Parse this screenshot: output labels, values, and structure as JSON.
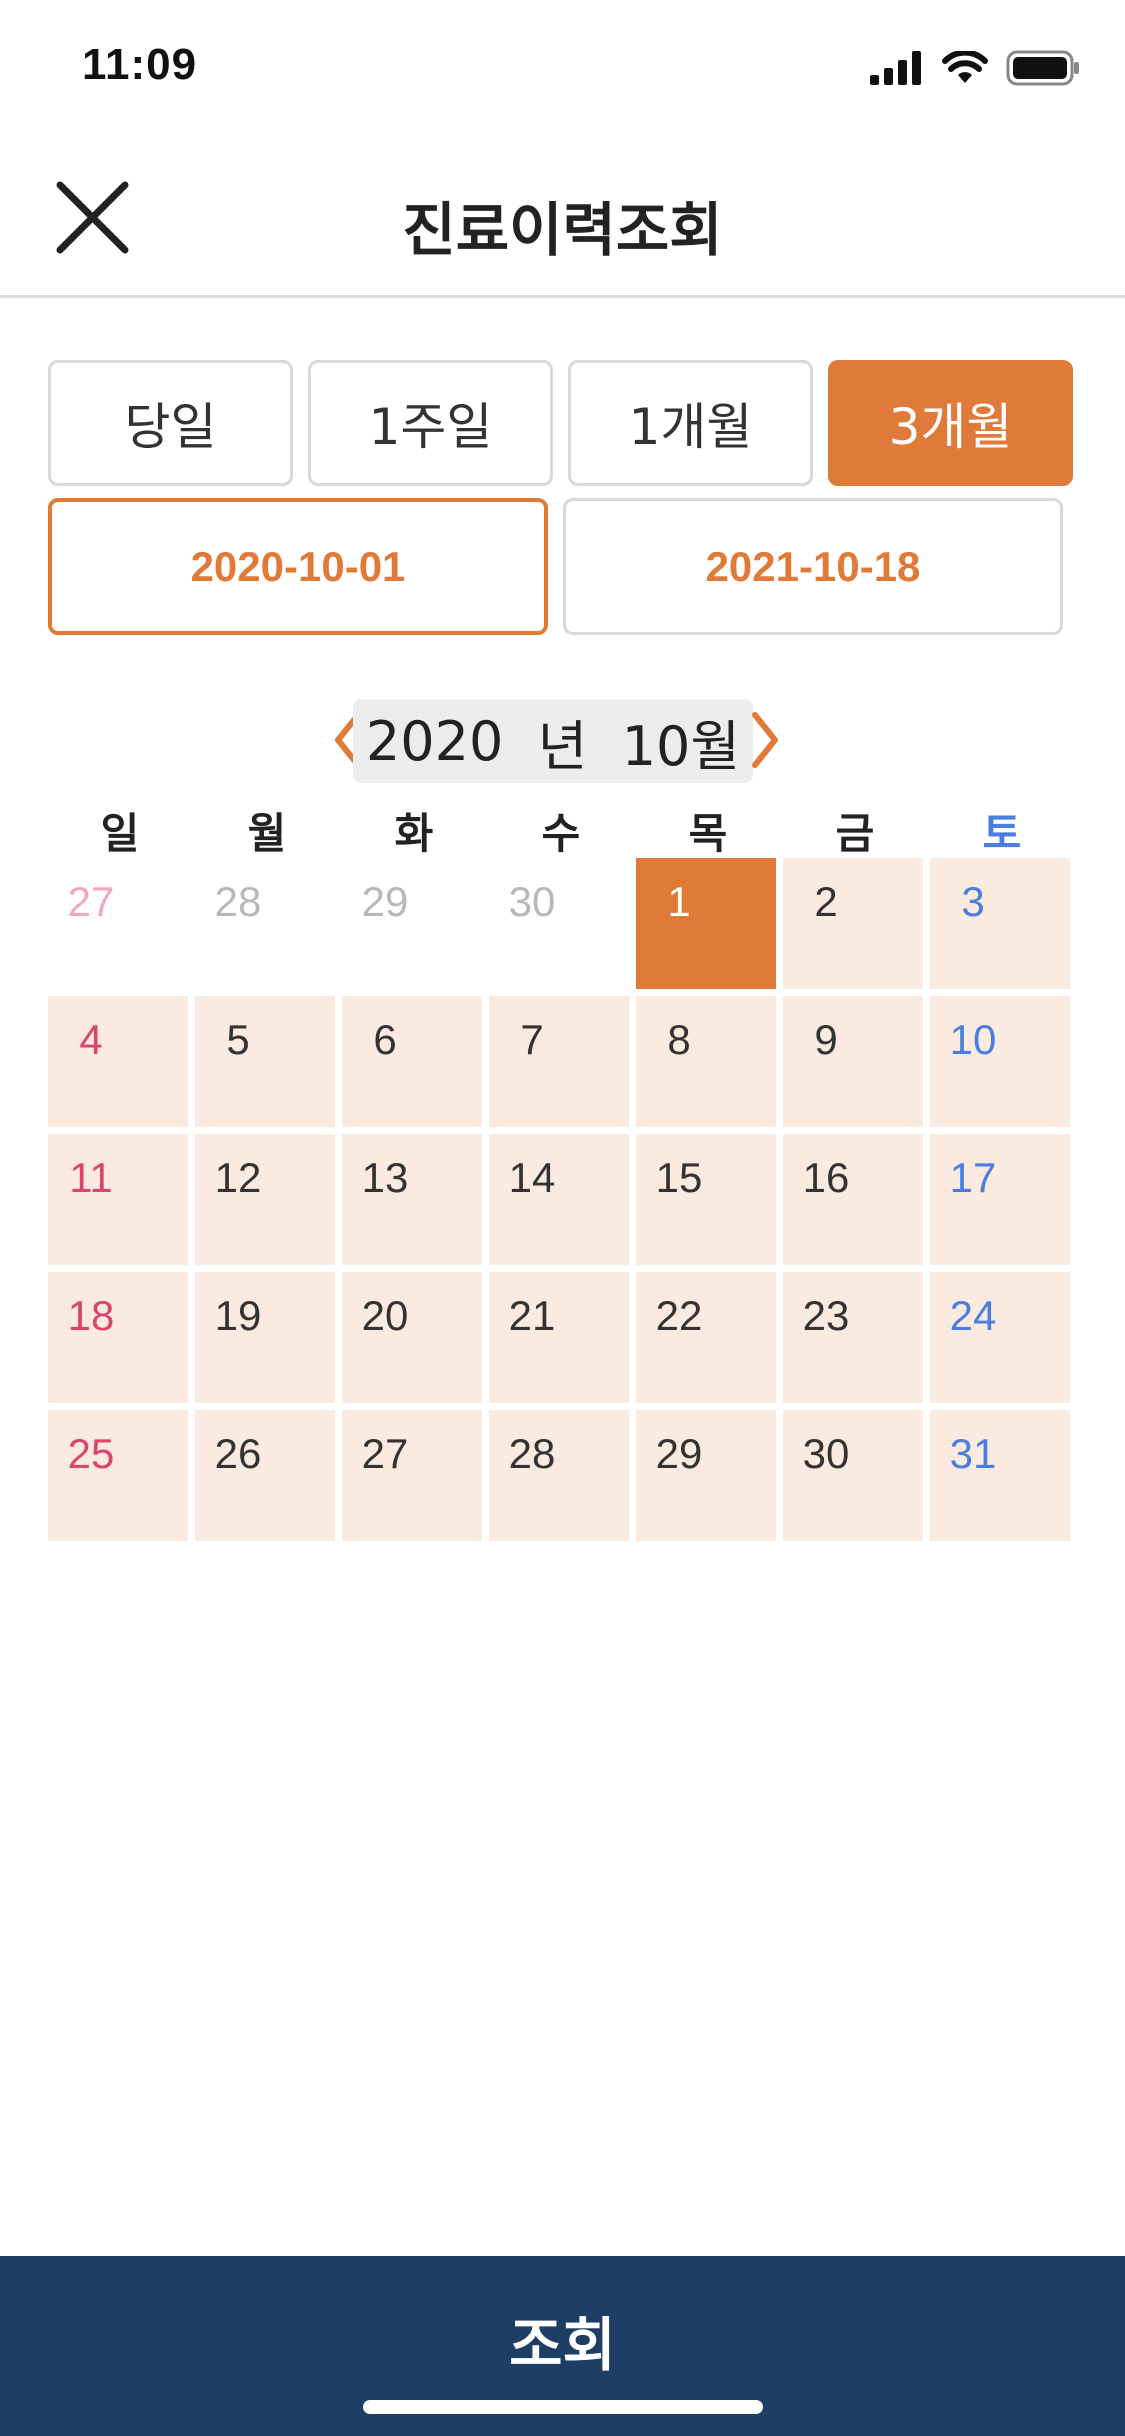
{
  "status_bar": {
    "time": "11:09"
  },
  "header": {
    "title": "진료이력조회"
  },
  "period_buttons": [
    {
      "label": "당일",
      "active": false
    },
    {
      "label": "1주일",
      "active": false
    },
    {
      "label": "1개월",
      "active": false
    },
    {
      "label": "3개월",
      "active": true
    }
  ],
  "date_range": {
    "start": "2020-10-01",
    "end": "2021-10-18"
  },
  "calendar": {
    "year": "2020",
    "year_suffix": "년",
    "month": "10월",
    "weekdays": [
      "일",
      "월",
      "화",
      "수",
      "목",
      "금",
      "토"
    ],
    "weeks": [
      [
        "27",
        "28",
        "29",
        "30",
        "1",
        "2",
        "3"
      ],
      [
        "4",
        "5",
        "6",
        "7",
        "8",
        "9",
        "10"
      ],
      [
        "11",
        "12",
        "13",
        "14",
        "15",
        "16",
        "17"
      ],
      [
        "18",
        "19",
        "20",
        "21",
        "22",
        "23",
        "24"
      ],
      [
        "25",
        "26",
        "27",
        "28",
        "29",
        "30",
        "31"
      ]
    ],
    "selected_day": "1",
    "colors": {
      "accent": "#e07a38",
      "range": "#fbeadf",
      "sunday": "#d9456e",
      "saturday": "#4a7fe0"
    }
  },
  "bottom_button": {
    "label": "조회",
    "color": "#1f3e63"
  }
}
